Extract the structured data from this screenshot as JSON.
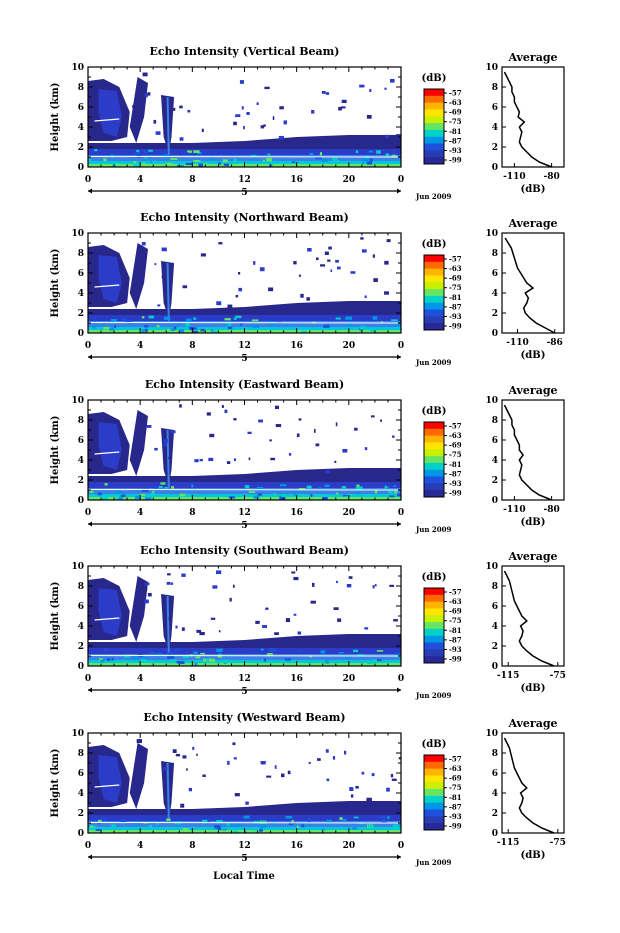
{
  "panels": [
    {
      "title": "Echo Intensity (Vertical Beam)",
      "avg_xticks": [
        "-110",
        "-80"
      ],
      "avg_xrange": [
        -120,
        -70
      ]
    },
    {
      "title": "Echo Intensity (Northward Beam)",
      "avg_xticks": [
        "-110",
        "-86"
      ],
      "avg_xrange": [
        -120,
        -80
      ]
    },
    {
      "title": "Echo Intensity (Eastward Beam)",
      "avg_xticks": [
        "-110",
        "-80"
      ],
      "avg_xrange": [
        -120,
        -70
      ]
    },
    {
      "title": "Echo Intensity (Southward Beam)",
      "avg_xticks": [
        "-115",
        "-75"
      ],
      "avg_xrange": [
        -120,
        -70
      ]
    },
    {
      "title": "Echo Intensity (Westward Beam)",
      "avg_xticks": [
        "-115",
        "-75"
      ],
      "avg_xrange": [
        -120,
        -70
      ]
    }
  ],
  "ylabel": "Height (km)",
  "yticks": [
    "0",
    "2",
    "4",
    "6",
    "8",
    "10"
  ],
  "xticks": [
    "0",
    "4",
    "8",
    "12",
    "16",
    "20",
    "0"
  ],
  "date_label": "5",
  "date_suffix": "Jun 2009",
  "xlabel": "Local Time",
  "avg_title": "Average",
  "avg_unit": "(dB)",
  "colorbar": {
    "unit": "(dB)",
    "ticks": [
      "-57",
      "-63",
      "-69",
      "-75",
      "-81",
      "-87",
      "-93",
      "-99"
    ],
    "colors": [
      "#ff0000",
      "#ff6a00",
      "#ffb400",
      "#ffe600",
      "#c8f000",
      "#64e664",
      "#00d2c8",
      "#0096e6",
      "#1e50dc",
      "#283cb4",
      "#282896"
    ]
  },
  "chart_data": [
    {
      "type": "heatmap",
      "title": "Echo Intensity (Vertical Beam)",
      "ylabel": "Height (km)",
      "xlabel": "Local Time",
      "xlim": [
        0,
        24
      ],
      "ylim": [
        0,
        10
      ],
      "zlim_dB": [
        -99,
        -57
      ],
      "average_profile": {
        "height_km": [
          0,
          0.5,
          1,
          1.5,
          2,
          2.5,
          3,
          3.5,
          4,
          4.5,
          5,
          5.5,
          6,
          6.5,
          7,
          7.5,
          8,
          8.5,
          9,
          9.5
        ],
        "dB": [
          -80,
          -90,
          -96,
          -100,
          -104,
          -106,
          -105,
          -104,
          -106,
          -102,
          -107,
          -106,
          -108,
          -110,
          -110,
          -112,
          -112,
          -114,
          -116,
          -118
        ]
      }
    },
    {
      "type": "heatmap",
      "title": "Echo Intensity (Northward Beam)",
      "ylabel": "Height (km)",
      "xlim": [
        0,
        24
      ],
      "ylim": [
        0,
        10
      ],
      "zlim_dB": [
        -99,
        -57
      ],
      "average_profile": {
        "height_km": [
          0,
          0.5,
          1,
          1.5,
          2,
          2.5,
          3,
          3.5,
          4,
          4.5,
          5,
          5.5,
          6,
          6.5,
          7,
          7.5,
          8,
          8.5,
          9,
          9.5
        ],
        "dB": [
          -86,
          -92,
          -98,
          -102,
          -105,
          -106,
          -104,
          -103,
          -105,
          -100,
          -104,
          -106,
          -108,
          -110,
          -111,
          -112,
          -113,
          -114,
          -116,
          -118
        ]
      }
    },
    {
      "type": "heatmap",
      "title": "Echo Intensity (Eastward Beam)",
      "ylabel": "Height (km)",
      "xlim": [
        0,
        24
      ],
      "ylim": [
        0,
        10
      ],
      "zlim_dB": [
        -99,
        -57
      ],
      "average_profile": {
        "height_km": [
          0,
          0.5,
          1,
          1.5,
          2,
          2.5,
          3,
          3.5,
          4,
          4.5,
          5,
          5.5,
          6,
          6.5,
          7,
          7.5,
          8,
          8.5,
          9,
          9.5
        ],
        "dB": [
          -80,
          -90,
          -96,
          -100,
          -104,
          -106,
          -105,
          -104,
          -106,
          -103,
          -106,
          -106,
          -108,
          -110,
          -110,
          -112,
          -112,
          -114,
          -116,
          -118
        ]
      }
    },
    {
      "type": "heatmap",
      "title": "Echo Intensity (Southward Beam)",
      "ylabel": "Height (km)",
      "xlim": [
        0,
        24
      ],
      "ylim": [
        0,
        10
      ],
      "zlim_dB": [
        -99,
        -57
      ],
      "average_profile": {
        "height_km": [
          0,
          0.5,
          1,
          1.5,
          2,
          2.5,
          3,
          3.5,
          4,
          4.5,
          5,
          5.5,
          6,
          6.5,
          7,
          7.5,
          8,
          8.5,
          9,
          9.5
        ],
        "dB": [
          -78,
          -88,
          -95,
          -100,
          -104,
          -106,
          -104,
          -103,
          -105,
          -100,
          -104,
          -106,
          -108,
          -110,
          -111,
          -112,
          -113,
          -114,
          -116,
          -118
        ]
      }
    },
    {
      "type": "heatmap",
      "title": "Echo Intensity (Westward Beam)",
      "ylabel": "Height (km)",
      "xlabel": "Local Time",
      "xlim": [
        0,
        24
      ],
      "ylim": [
        0,
        10
      ],
      "zlim_dB": [
        -99,
        -57
      ],
      "average_profile": {
        "height_km": [
          0,
          0.5,
          1,
          1.5,
          2,
          2.5,
          3,
          3.5,
          4,
          4.5,
          5,
          5.5,
          6,
          6.5,
          7,
          7.5,
          8,
          8.5,
          9,
          9.5
        ],
        "dB": [
          -78,
          -88,
          -95,
          -100,
          -104,
          -106,
          -104,
          -103,
          -105,
          -100,
          -104,
          -106,
          -108,
          -110,
          -111,
          -112,
          -113,
          -114,
          -116,
          -118
        ]
      }
    }
  ]
}
